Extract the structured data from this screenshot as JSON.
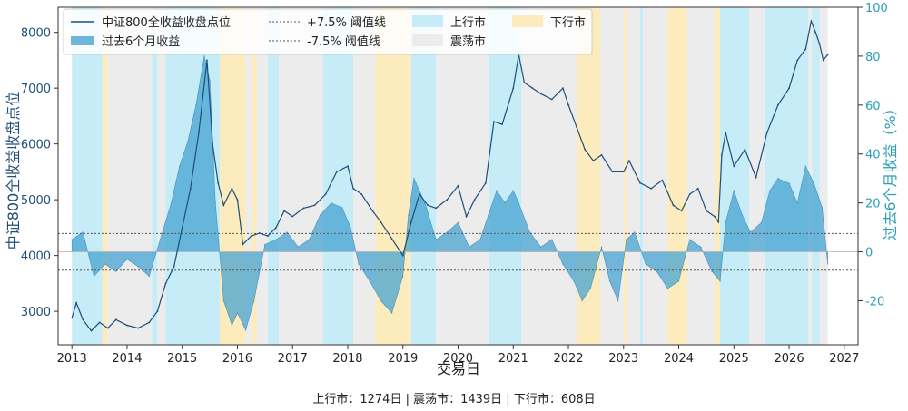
{
  "chart_data": {
    "type": "line",
    "title": "",
    "xlabel": "交易日",
    "ylabel_left": "中证800全收益收盘点位",
    "ylabel_right": "过去6个月收益（%）",
    "xlim": [
      2012.75,
      2027.25
    ],
    "ylim_left": [
      2400,
      8450
    ],
    "ylim_right": [
      -38,
      100
    ],
    "x_ticks": [
      2013,
      2014,
      2015,
      2016,
      2017,
      2018,
      2019,
      2020,
      2021,
      2022,
      2023,
      2024,
      2025,
      2026,
      2027
    ],
    "y_left_ticks": [
      3000,
      4000,
      5000,
      6000,
      7000,
      8000
    ],
    "y_right_ticks": [
      -20,
      0,
      20,
      40,
      60,
      80,
      100
    ],
    "thresholds": [
      {
        "name": "+7.5% 阈值线",
        "value": 7.5
      },
      {
        "name": "-7.5% 阈值线",
        "value": -7.5
      }
    ],
    "colors": {
      "price": "#1f4e79",
      "returns": "#3d9fd0",
      "up": "#c5ecf7",
      "flat": "#ececec",
      "down": "#fcecbd",
      "threshold": "#555555",
      "left_axis": "#1f4e79",
      "right_axis": "#2a9fb8"
    },
    "series": [
      {
        "name": "中证800全收益收盘点位",
        "axis": "left",
        "x": [
          2013.0,
          2013.08,
          2013.2,
          2013.35,
          2013.5,
          2013.65,
          2013.8,
          2014.0,
          2014.2,
          2014.4,
          2014.55,
          2014.7,
          2014.85,
          2015.0,
          2015.15,
          2015.3,
          2015.45,
          2015.55,
          2015.65,
          2015.75,
          2015.9,
          2016.0,
          2016.1,
          2016.25,
          2016.4,
          2016.55,
          2016.7,
          2016.85,
          2017.0,
          2017.2,
          2017.4,
          2017.6,
          2017.8,
          2018.0,
          2018.1,
          2018.25,
          2018.45,
          2018.6,
          2018.8,
          2019.0,
          2019.15,
          2019.3,
          2019.45,
          2019.6,
          2019.8,
          2020.0,
          2020.15,
          2020.3,
          2020.5,
          2020.65,
          2020.8,
          2021.0,
          2021.1,
          2021.2,
          2021.35,
          2021.5,
          2021.7,
          2021.9,
          2022.0,
          2022.15,
          2022.3,
          2022.45,
          2022.6,
          2022.8,
          2023.0,
          2023.1,
          2023.3,
          2023.5,
          2023.7,
          2023.9,
          2024.05,
          2024.2,
          2024.35,
          2024.5,
          2024.65,
          2024.72,
          2024.78,
          2024.85,
          2025.0,
          2025.2,
          2025.4,
          2025.6,
          2025.8,
          2026.0,
          2026.15,
          2026.3,
          2026.4,
          2026.48,
          2026.55,
          2026.62,
          2026.7
        ],
        "values": [
          2880,
          3150,
          2850,
          2650,
          2800,
          2700,
          2850,
          2750,
          2700,
          2800,
          3000,
          3500,
          3800,
          4500,
          5200,
          6200,
          7500,
          6000,
          5300,
          4900,
          5200,
          5000,
          4200,
          4350,
          4400,
          4350,
          4500,
          4800,
          4700,
          4850,
          4900,
          5100,
          5500,
          5600,
          5200,
          5100,
          4800,
          4600,
          4300,
          4000,
          4600,
          5100,
          4900,
          4850,
          5000,
          5250,
          4700,
          5000,
          5300,
          6400,
          6350,
          7000,
          7600,
          7100,
          7000,
          6900,
          6800,
          7000,
          6700,
          6300,
          5900,
          5700,
          5800,
          5500,
          5500,
          5700,
          5300,
          5200,
          5350,
          4900,
          4800,
          5100,
          5200,
          4800,
          4700,
          4600,
          5800,
          6200,
          5600,
          5900,
          5400,
          6200,
          6700,
          7000,
          7500,
          7700,
          8200,
          8000,
          7800,
          7500,
          7600
        ]
      },
      {
        "name": "过去6个月收益",
        "axis": "right",
        "x": [
          2013.0,
          2013.2,
          2013.4,
          2013.6,
          2013.8,
          2014.0,
          2014.2,
          2014.4,
          2014.6,
          2014.8,
          2014.95,
          2015.1,
          2015.25,
          2015.4,
          2015.5,
          2015.6,
          2015.75,
          2015.9,
          2016.0,
          2016.15,
          2016.3,
          2016.5,
          2016.7,
          2016.9,
          2017.1,
          2017.3,
          2017.5,
          2017.7,
          2017.9,
          2018.05,
          2018.2,
          2018.4,
          2018.6,
          2018.8,
          2019.0,
          2019.1,
          2019.2,
          2019.4,
          2019.6,
          2019.8,
          2020.0,
          2020.2,
          2020.4,
          2020.55,
          2020.7,
          2020.85,
          2021.0,
          2021.1,
          2021.3,
          2021.5,
          2021.7,
          2021.9,
          2022.1,
          2022.25,
          2022.4,
          2022.6,
          2022.75,
          2022.9,
          2023.05,
          2023.2,
          2023.4,
          2023.6,
          2023.8,
          2024.0,
          2024.2,
          2024.4,
          2024.6,
          2024.75,
          2024.85,
          2025.0,
          2025.15,
          2025.3,
          2025.5,
          2025.65,
          2025.8,
          2026.0,
          2026.15,
          2026.3,
          2026.45,
          2026.6,
          2026.7
        ],
        "values": [
          5,
          8,
          -10,
          -5,
          -8,
          -3,
          -6,
          -10,
          5,
          20,
          35,
          45,
          60,
          80,
          70,
          20,
          -20,
          -30,
          -25,
          -32,
          -20,
          3,
          5,
          8,
          2,
          5,
          15,
          20,
          18,
          10,
          -5,
          -12,
          -20,
          -25,
          -10,
          15,
          30,
          20,
          5,
          8,
          12,
          2,
          5,
          15,
          25,
          20,
          25,
          20,
          8,
          2,
          5,
          -5,
          -12,
          -20,
          -15,
          2,
          -12,
          -20,
          5,
          8,
          -5,
          -8,
          -15,
          -12,
          5,
          2,
          -8,
          -12,
          12,
          25,
          15,
          8,
          12,
          25,
          30,
          28,
          20,
          35,
          28,
          18,
          -5
        ]
      }
    ],
    "regimes_legend": {
      "up": "上行市",
      "flat": "震荡市",
      "down": "下行市"
    },
    "regimes": [
      {
        "type": "up",
        "start": 2013.0,
        "end": 2013.55
      },
      {
        "type": "down",
        "start": 2013.55,
        "end": 2013.65
      },
      {
        "type": "flat",
        "start": 2013.65,
        "end": 2014.45
      },
      {
        "type": "up",
        "start": 2014.45,
        "end": 2014.55
      },
      {
        "type": "flat",
        "start": 2014.55,
        "end": 2014.7
      },
      {
        "type": "up",
        "start": 2014.7,
        "end": 2015.68
      },
      {
        "type": "down",
        "start": 2015.68,
        "end": 2016.15
      },
      {
        "type": "flat",
        "start": 2016.15,
        "end": 2016.25
      },
      {
        "type": "down",
        "start": 2016.25,
        "end": 2016.35
      },
      {
        "type": "flat",
        "start": 2016.35,
        "end": 2016.55
      },
      {
        "type": "up",
        "start": 2016.55,
        "end": 2016.75
      },
      {
        "type": "flat",
        "start": 2016.75,
        "end": 2017.55
      },
      {
        "type": "up",
        "start": 2017.55,
        "end": 2018.1
      },
      {
        "type": "flat",
        "start": 2018.1,
        "end": 2018.5
      },
      {
        "type": "down",
        "start": 2018.5,
        "end": 2019.15
      },
      {
        "type": "up",
        "start": 2019.15,
        "end": 2019.6
      },
      {
        "type": "flat",
        "start": 2019.6,
        "end": 2020.55
      },
      {
        "type": "up",
        "start": 2020.55,
        "end": 2021.15
      },
      {
        "type": "flat",
        "start": 2021.15,
        "end": 2022.15
      },
      {
        "type": "down",
        "start": 2022.15,
        "end": 2022.58
      },
      {
        "type": "flat",
        "start": 2022.58,
        "end": 2023.0
      },
      {
        "type": "down",
        "start": 2023.0,
        "end": 2023.05
      },
      {
        "type": "flat",
        "start": 2023.05,
        "end": 2023.3
      },
      {
        "type": "up",
        "start": 2023.3,
        "end": 2023.35
      },
      {
        "type": "flat",
        "start": 2023.35,
        "end": 2023.8
      },
      {
        "type": "down",
        "start": 2023.8,
        "end": 2024.15
      },
      {
        "type": "flat",
        "start": 2024.15,
        "end": 2024.65
      },
      {
        "type": "down",
        "start": 2024.65,
        "end": 2024.75
      },
      {
        "type": "up",
        "start": 2024.75,
        "end": 2025.28
      },
      {
        "type": "flat",
        "start": 2025.28,
        "end": 2025.55
      },
      {
        "type": "up",
        "start": 2025.55,
        "end": 2026.35
      },
      {
        "type": "flat",
        "start": 2026.35,
        "end": 2026.42
      },
      {
        "type": "up",
        "start": 2026.42,
        "end": 2026.55
      },
      {
        "type": "flat",
        "start": 2026.55,
        "end": 2026.7
      }
    ],
    "legend_placement": "top-left",
    "grid": false
  },
  "footer": {
    "text": "上行市：1274日  |  震荡市：1439日  |  下行市：608日"
  }
}
